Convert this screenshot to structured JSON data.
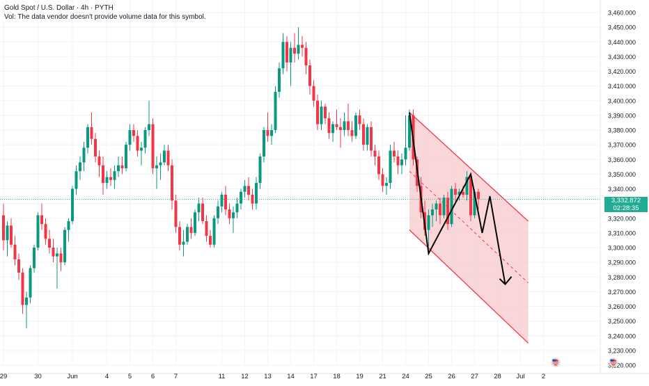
{
  "legend": {
    "title": "Gold Spot / U.S. Dollar · 4h · PYTH",
    "vol_note": "Vol: The data vendor doesn't provide volume data for this symbol."
  },
  "price_tag": {
    "price": "3,332.872",
    "countdown": "02:28:35"
  },
  "colors": {
    "up": "#089981",
    "down": "#f23645",
    "channel": "#f23645",
    "channel_fill": "#f7c9cc",
    "last_price_line": "#22ab94",
    "grid": "#f0f3fa"
  },
  "icons": [
    "us-flag-icon",
    "us-flag-icon"
  ],
  "chart_data": {
    "type": "candlestick",
    "y_axis": {
      "min": 3220,
      "max": 3460,
      "ticks": [
        3220,
        3230,
        3240,
        3250,
        3260,
        3270,
        3280,
        3290,
        3300,
        3310,
        3320,
        3330,
        3340,
        3350,
        3360,
        3370,
        3380,
        3390,
        3400,
        3410,
        3420,
        3430,
        3440,
        3450,
        3460
      ],
      "tick_labels": [
        "3,220.000",
        "3,230.000",
        "3,240.000",
        "3,250.000",
        "3,260.000",
        "3,270.000",
        "3,280.000",
        "3,290.000",
        "3,300.000",
        "3,310.000",
        "3,320.000",
        "3,330.000",
        "3,340.000",
        "3,350.000",
        "3,360.000",
        "3,370.000",
        "3,380.000",
        "3,390.000",
        "3,400.000",
        "3,410.000",
        "3,420.000",
        "3,430.000",
        "3,440.000",
        "3,450.000",
        "3,460.000"
      ]
    },
    "x_axis": {
      "labels": [
        "29",
        "30",
        "Jun",
        "4",
        "5",
        "6",
        "7",
        "11",
        "12",
        "13",
        "14",
        "17",
        "18",
        "19",
        "21",
        "24",
        "25",
        "26",
        "27",
        "28",
        "Jul",
        "2"
      ],
      "label_index": [
        0,
        9,
        18,
        27,
        33,
        39,
        45,
        57,
        63,
        69,
        75,
        81,
        87,
        93,
        99,
        105,
        111,
        117,
        123,
        129,
        135,
        141
      ]
    },
    "last_price": 3332.872,
    "candles": [
      {
        "o": 3322,
        "h": 3330,
        "l": 3298,
        "c": 3305
      },
      {
        "o": 3305,
        "h": 3318,
        "l": 3294,
        "c": 3315
      },
      {
        "o": 3315,
        "h": 3320,
        "l": 3300,
        "c": 3302
      },
      {
        "o": 3302,
        "h": 3308,
        "l": 3288,
        "c": 3292
      },
      {
        "o": 3292,
        "h": 3296,
        "l": 3278,
        "c": 3283
      },
      {
        "o": 3283,
        "h": 3286,
        "l": 3255,
        "c": 3261
      },
      {
        "o": 3261,
        "h": 3270,
        "l": 3245,
        "c": 3266
      },
      {
        "o": 3266,
        "h": 3288,
        "l": 3262,
        "c": 3286
      },
      {
        "o": 3286,
        "h": 3302,
        "l": 3283,
        "c": 3300
      },
      {
        "o": 3300,
        "h": 3324,
        "l": 3298,
        "c": 3322
      },
      {
        "o": 3322,
        "h": 3330,
        "l": 3312,
        "c": 3316
      },
      {
        "o": 3316,
        "h": 3320,
        "l": 3302,
        "c": 3306
      },
      {
        "o": 3306,
        "h": 3312,
        "l": 3296,
        "c": 3300
      },
      {
        "o": 3300,
        "h": 3306,
        "l": 3290,
        "c": 3294
      },
      {
        "o": 3294,
        "h": 3300,
        "l": 3272,
        "c": 3296
      },
      {
        "o": 3296,
        "h": 3300,
        "l": 3284,
        "c": 3290
      },
      {
        "o": 3290,
        "h": 3314,
        "l": 3288,
        "c": 3312
      },
      {
        "o": 3312,
        "h": 3320,
        "l": 3304,
        "c": 3318
      },
      {
        "o": 3318,
        "h": 3342,
        "l": 3316,
        "c": 3340
      },
      {
        "o": 3340,
        "h": 3356,
        "l": 3336,
        "c": 3352
      },
      {
        "o": 3352,
        "h": 3362,
        "l": 3346,
        "c": 3358
      },
      {
        "o": 3358,
        "h": 3372,
        "l": 3352,
        "c": 3368
      },
      {
        "o": 3368,
        "h": 3384,
        "l": 3364,
        "c": 3382
      },
      {
        "o": 3382,
        "h": 3392,
        "l": 3370,
        "c": 3374
      },
      {
        "o": 3374,
        "h": 3378,
        "l": 3358,
        "c": 3362
      },
      {
        "o": 3362,
        "h": 3366,
        "l": 3348,
        "c": 3356
      },
      {
        "o": 3356,
        "h": 3362,
        "l": 3336,
        "c": 3344
      },
      {
        "o": 3344,
        "h": 3352,
        "l": 3340,
        "c": 3348
      },
      {
        "o": 3348,
        "h": 3354,
        "l": 3342,
        "c": 3346
      },
      {
        "o": 3346,
        "h": 3356,
        "l": 3340,
        "c": 3352
      },
      {
        "o": 3352,
        "h": 3362,
        "l": 3348,
        "c": 3356
      },
      {
        "o": 3356,
        "h": 3362,
        "l": 3350,
        "c": 3354
      },
      {
        "o": 3354,
        "h": 3372,
        "l": 3352,
        "c": 3370
      },
      {
        "o": 3370,
        "h": 3384,
        "l": 3366,
        "c": 3380
      },
      {
        "o": 3380,
        "h": 3384,
        "l": 3372,
        "c": 3376
      },
      {
        "o": 3376,
        "h": 3380,
        "l": 3362,
        "c": 3366
      },
      {
        "o": 3366,
        "h": 3372,
        "l": 3356,
        "c": 3368
      },
      {
        "o": 3368,
        "h": 3382,
        "l": 3364,
        "c": 3380
      },
      {
        "o": 3380,
        "h": 3400,
        "l": 3376,
        "c": 3384
      },
      {
        "o": 3384,
        "h": 3388,
        "l": 3350,
        "c": 3354
      },
      {
        "o": 3354,
        "h": 3362,
        "l": 3340,
        "c": 3356
      },
      {
        "o": 3356,
        "h": 3364,
        "l": 3346,
        "c": 3358
      },
      {
        "o": 3358,
        "h": 3370,
        "l": 3356,
        "c": 3366
      },
      {
        "o": 3366,
        "h": 3370,
        "l": 3352,
        "c": 3356
      },
      {
        "o": 3356,
        "h": 3360,
        "l": 3326,
        "c": 3332
      },
      {
        "o": 3332,
        "h": 3336,
        "l": 3310,
        "c": 3314
      },
      {
        "o": 3314,
        "h": 3318,
        "l": 3298,
        "c": 3302
      },
      {
        "o": 3302,
        "h": 3312,
        "l": 3294,
        "c": 3304
      },
      {
        "o": 3304,
        "h": 3316,
        "l": 3302,
        "c": 3314
      },
      {
        "o": 3314,
        "h": 3320,
        "l": 3306,
        "c": 3310
      },
      {
        "o": 3310,
        "h": 3326,
        "l": 3308,
        "c": 3324
      },
      {
        "o": 3324,
        "h": 3334,
        "l": 3318,
        "c": 3330
      },
      {
        "o": 3330,
        "h": 3334,
        "l": 3316,
        "c": 3318
      },
      {
        "o": 3318,
        "h": 3322,
        "l": 3304,
        "c": 3308
      },
      {
        "o": 3308,
        "h": 3312,
        "l": 3300,
        "c": 3302
      },
      {
        "o": 3302,
        "h": 3322,
        "l": 3300,
        "c": 3320
      },
      {
        "o": 3320,
        "h": 3332,
        "l": 3316,
        "c": 3328
      },
      {
        "o": 3328,
        "h": 3338,
        "l": 3324,
        "c": 3336
      },
      {
        "o": 3336,
        "h": 3342,
        "l": 3322,
        "c": 3326
      },
      {
        "o": 3326,
        "h": 3330,
        "l": 3316,
        "c": 3320
      },
      {
        "o": 3320,
        "h": 3328,
        "l": 3310,
        "c": 3324
      },
      {
        "o": 3324,
        "h": 3334,
        "l": 3320,
        "c": 3330
      },
      {
        "o": 3330,
        "h": 3340,
        "l": 3326,
        "c": 3338
      },
      {
        "o": 3338,
        "h": 3346,
        "l": 3334,
        "c": 3342
      },
      {
        "o": 3342,
        "h": 3348,
        "l": 3332,
        "c": 3336
      },
      {
        "o": 3336,
        "h": 3340,
        "l": 3326,
        "c": 3330
      },
      {
        "o": 3330,
        "h": 3348,
        "l": 3326,
        "c": 3344
      },
      {
        "o": 3344,
        "h": 3364,
        "l": 3340,
        "c": 3362
      },
      {
        "o": 3362,
        "h": 3382,
        "l": 3358,
        "c": 3380
      },
      {
        "o": 3380,
        "h": 3392,
        "l": 3372,
        "c": 3376
      },
      {
        "o": 3376,
        "h": 3384,
        "l": 3370,
        "c": 3380
      },
      {
        "o": 3380,
        "h": 3410,
        "l": 3378,
        "c": 3406
      },
      {
        "o": 3406,
        "h": 3426,
        "l": 3402,
        "c": 3422
      },
      {
        "o": 3422,
        "h": 3446,
        "l": 3418,
        "c": 3440
      },
      {
        "o": 3440,
        "h": 3444,
        "l": 3420,
        "c": 3426
      },
      {
        "o": 3426,
        "h": 3440,
        "l": 3410,
        "c": 3436
      },
      {
        "o": 3436,
        "h": 3446,
        "l": 3426,
        "c": 3432
      },
      {
        "o": 3432,
        "h": 3450,
        "l": 3428,
        "c": 3438
      },
      {
        "o": 3438,
        "h": 3444,
        "l": 3430,
        "c": 3436
      },
      {
        "o": 3436,
        "h": 3440,
        "l": 3418,
        "c": 3424
      },
      {
        "o": 3424,
        "h": 3428,
        "l": 3404,
        "c": 3410
      },
      {
        "o": 3410,
        "h": 3414,
        "l": 3396,
        "c": 3400
      },
      {
        "o": 3400,
        "h": 3404,
        "l": 3380,
        "c": 3384
      },
      {
        "o": 3384,
        "h": 3400,
        "l": 3380,
        "c": 3396
      },
      {
        "o": 3396,
        "h": 3398,
        "l": 3384,
        "c": 3388
      },
      {
        "o": 3388,
        "h": 3392,
        "l": 3374,
        "c": 3378
      },
      {
        "o": 3378,
        "h": 3386,
        "l": 3372,
        "c": 3384
      },
      {
        "o": 3384,
        "h": 3394,
        "l": 3380,
        "c": 3382
      },
      {
        "o": 3382,
        "h": 3388,
        "l": 3368,
        "c": 3380
      },
      {
        "o": 3380,
        "h": 3392,
        "l": 3376,
        "c": 3386
      },
      {
        "o": 3386,
        "h": 3398,
        "l": 3376,
        "c": 3380
      },
      {
        "o": 3380,
        "h": 3386,
        "l": 3372,
        "c": 3376
      },
      {
        "o": 3376,
        "h": 3392,
        "l": 3374,
        "c": 3390
      },
      {
        "o": 3390,
        "h": 3394,
        "l": 3380,
        "c": 3384
      },
      {
        "o": 3384,
        "h": 3388,
        "l": 3366,
        "c": 3370
      },
      {
        "o": 3370,
        "h": 3384,
        "l": 3366,
        "c": 3382
      },
      {
        "o": 3382,
        "h": 3386,
        "l": 3362,
        "c": 3366
      },
      {
        "o": 3366,
        "h": 3370,
        "l": 3356,
        "c": 3362
      },
      {
        "o": 3362,
        "h": 3366,
        "l": 3346,
        "c": 3350
      },
      {
        "o": 3350,
        "h": 3354,
        "l": 3338,
        "c": 3342
      },
      {
        "o": 3342,
        "h": 3348,
        "l": 3336,
        "c": 3344
      },
      {
        "o": 3344,
        "h": 3370,
        "l": 3340,
        "c": 3366
      },
      {
        "o": 3366,
        "h": 3372,
        "l": 3358,
        "c": 3362
      },
      {
        "o": 3362,
        "h": 3366,
        "l": 3350,
        "c": 3356
      },
      {
        "o": 3356,
        "h": 3364,
        "l": 3350,
        "c": 3360
      },
      {
        "o": 3360,
        "h": 3390,
        "l": 3356,
        "c": 3368
      },
      {
        "o": 3368,
        "h": 3394,
        "l": 3366,
        "c": 3390
      },
      {
        "o": 3390,
        "h": 3394,
        "l": 3356,
        "c": 3360
      },
      {
        "o": 3360,
        "h": 3362,
        "l": 3338,
        "c": 3342
      },
      {
        "o": 3342,
        "h": 3348,
        "l": 3320,
        "c": 3324
      },
      {
        "o": 3324,
        "h": 3332,
        "l": 3308,
        "c": 3312
      },
      {
        "o": 3312,
        "h": 3326,
        "l": 3300,
        "c": 3322
      },
      {
        "o": 3322,
        "h": 3330,
        "l": 3314,
        "c": 3326
      },
      {
        "o": 3326,
        "h": 3332,
        "l": 3318,
        "c": 3330
      },
      {
        "o": 3330,
        "h": 3334,
        "l": 3316,
        "c": 3322
      },
      {
        "o": 3322,
        "h": 3336,
        "l": 3320,
        "c": 3334
      },
      {
        "o": 3334,
        "h": 3338,
        "l": 3312,
        "c": 3316
      },
      {
        "o": 3316,
        "h": 3342,
        "l": 3314,
        "c": 3340
      },
      {
        "o": 3340,
        "h": 3344,
        "l": 3330,
        "c": 3336
      },
      {
        "o": 3336,
        "h": 3340,
        "l": 3332,
        "c": 3338
      },
      {
        "o": 3338,
        "h": 3342,
        "l": 3334,
        "c": 3336
      },
      {
        "o": 3336,
        "h": 3352,
        "l": 3332,
        "c": 3348
      },
      {
        "o": 3348,
        "h": 3350,
        "l": 3318,
        "c": 3322
      },
      {
        "o": 3322,
        "h": 3340,
        "l": 3320,
        "c": 3338
      },
      {
        "o": 3338,
        "h": 3340,
        "l": 3326,
        "c": 3333
      }
    ],
    "channel": {
      "upper": [
        [
          106,
          3392
        ],
        [
          137,
          3318
        ]
      ],
      "lower": [
        [
          106,
          3312
        ],
        [
          137,
          3235
        ]
      ],
      "midline": [
        [
          106,
          3352
        ],
        [
          137,
          3276
        ]
      ]
    },
    "zigzag": [
      [
        106,
        3392
      ],
      [
        111,
        3296
      ],
      [
        122,
        3350
      ],
      [
        125,
        3310
      ],
      [
        127,
        3335
      ],
      [
        131,
        3275
      ]
    ]
  }
}
